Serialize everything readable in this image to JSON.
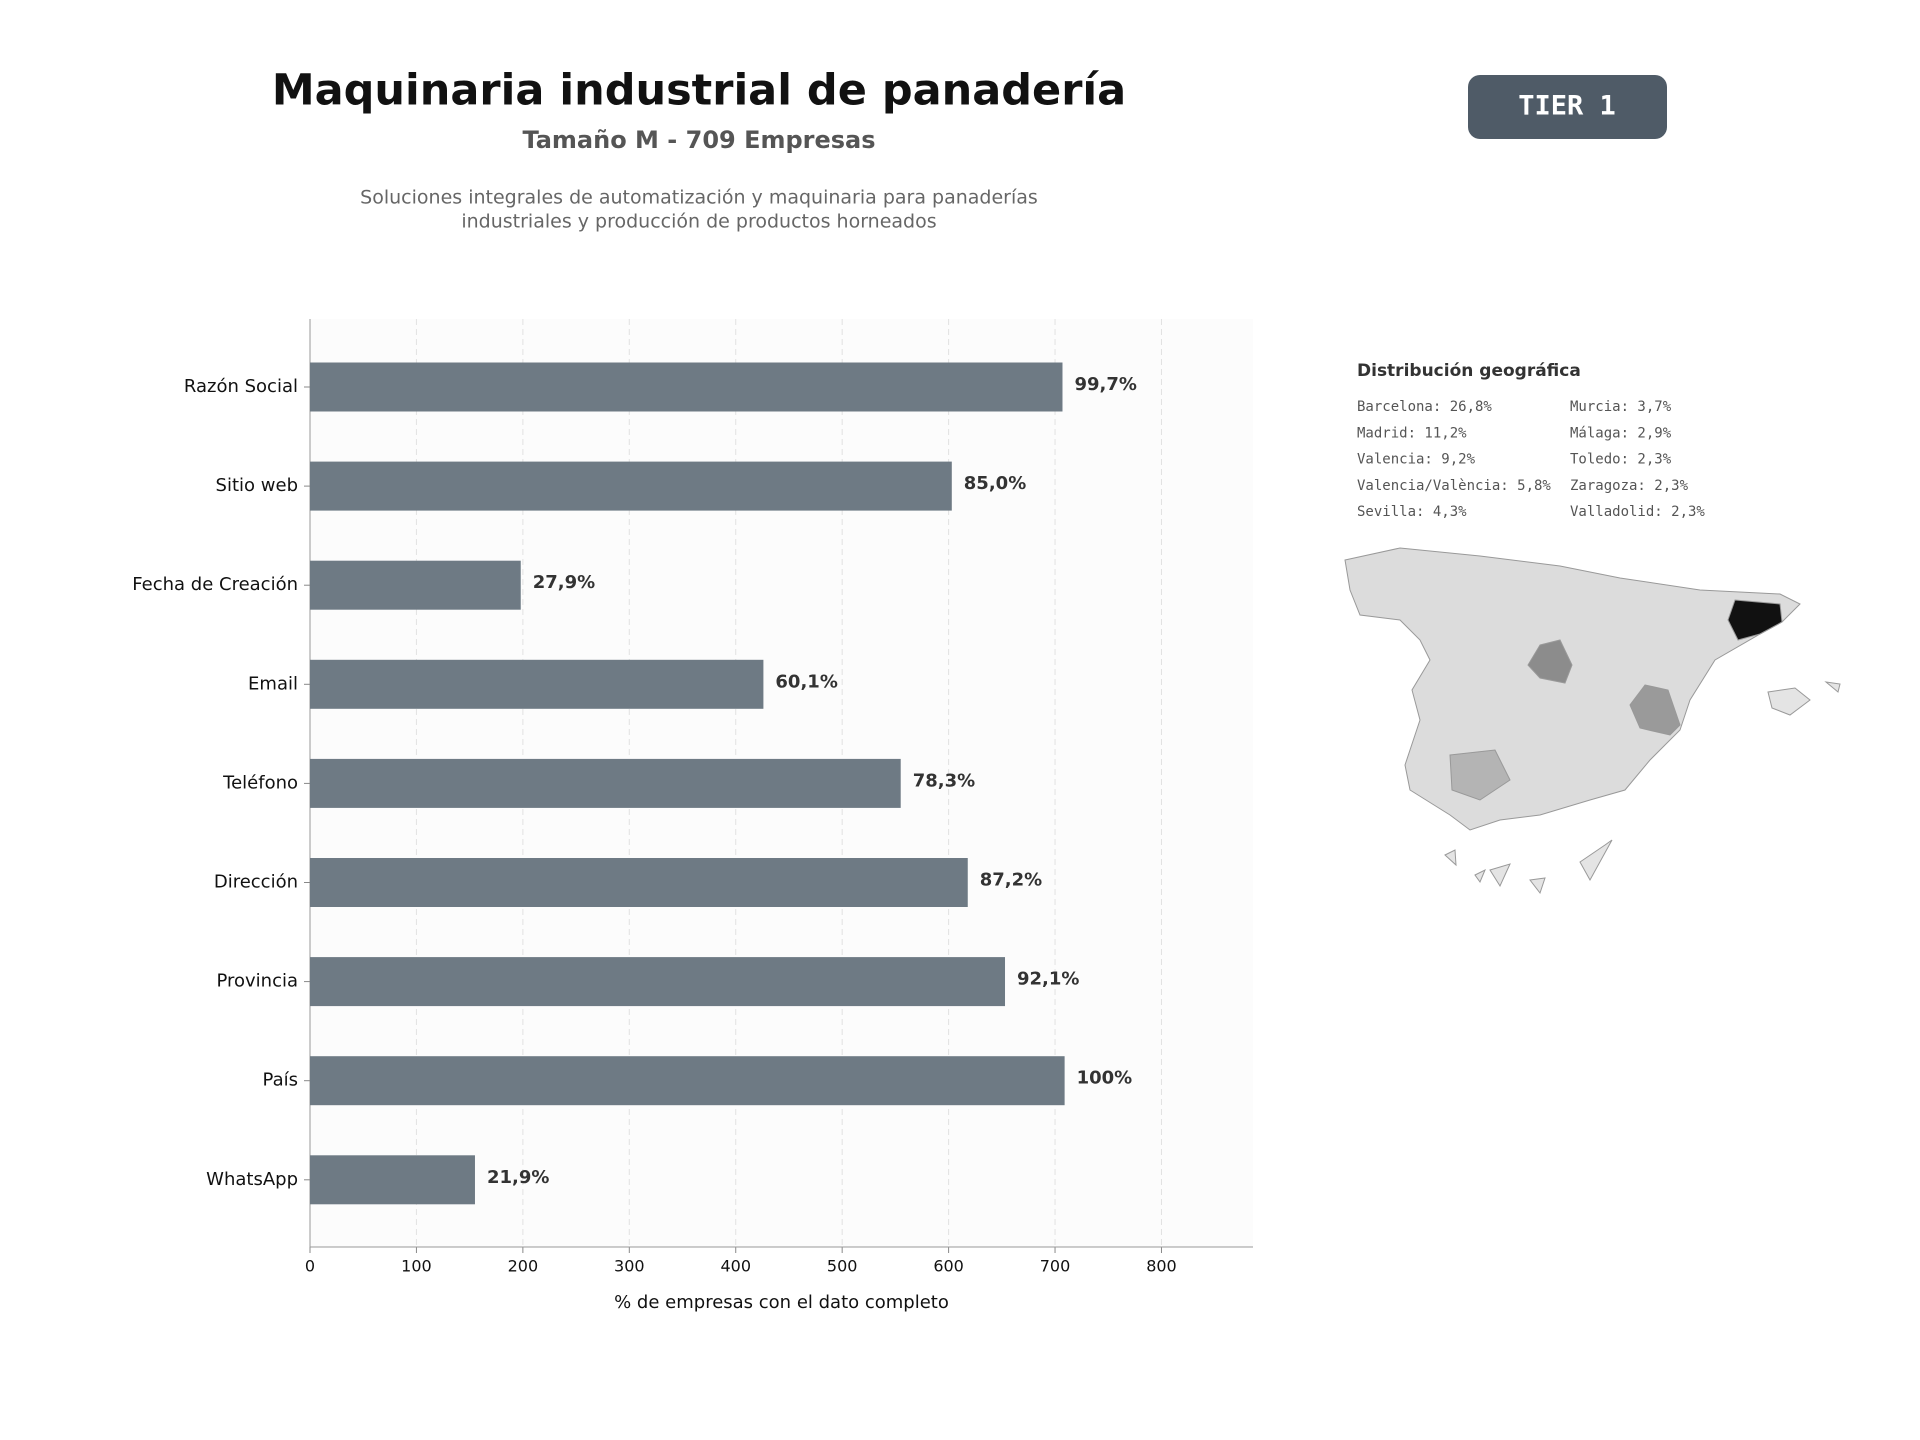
{
  "chart_data": {
    "type": "bar",
    "title": "Maquinaria industrial de panadería",
    "subtitle": "Tamaño M - 709 Empresas",
    "description": [
      "Soluciones integrales de automatización y maquinaria para panaderías",
      "industriales y producción de productos horneados"
    ],
    "categories": [
      "Razón Social",
      "Sitio web",
      "Fecha de Creación",
      "Email",
      "Teléfono",
      "Dirección",
      "Provincia",
      "País",
      "WhatsApp"
    ],
    "values": [
      707,
      603,
      198,
      426,
      555,
      618,
      653,
      709,
      155
    ],
    "value_labels": [
      "99,7%",
      "85,0%",
      "27,9%",
      "60,1%",
      "78,3%",
      "87,2%",
      "92,1%",
      "100%",
      "21,9%"
    ],
    "color": "#6e7a84",
    "xlim": [
      0,
      886
    ],
    "xticks": [
      0,
      100,
      200,
      300,
      400,
      500,
      600,
      700,
      800
    ],
    "xlabel": "% de empresas con el dato completo",
    "grid": true
  },
  "badge": "TIER 1",
  "geo": {
    "title": "Distribución geográfica",
    "items": [
      "Barcelona: 26,8%",
      "Madrid: 11,2%",
      "Valencia: 9,2%",
      "Valencia/València: 5,8%",
      "Sevilla: 4,3%",
      "Murcia: 3,7%",
      "Málaga: 2,9%",
      "Toledo: 2,3%",
      "Zaragoza: 2,3%",
      "Valladolid: 2,3%"
    ]
  }
}
